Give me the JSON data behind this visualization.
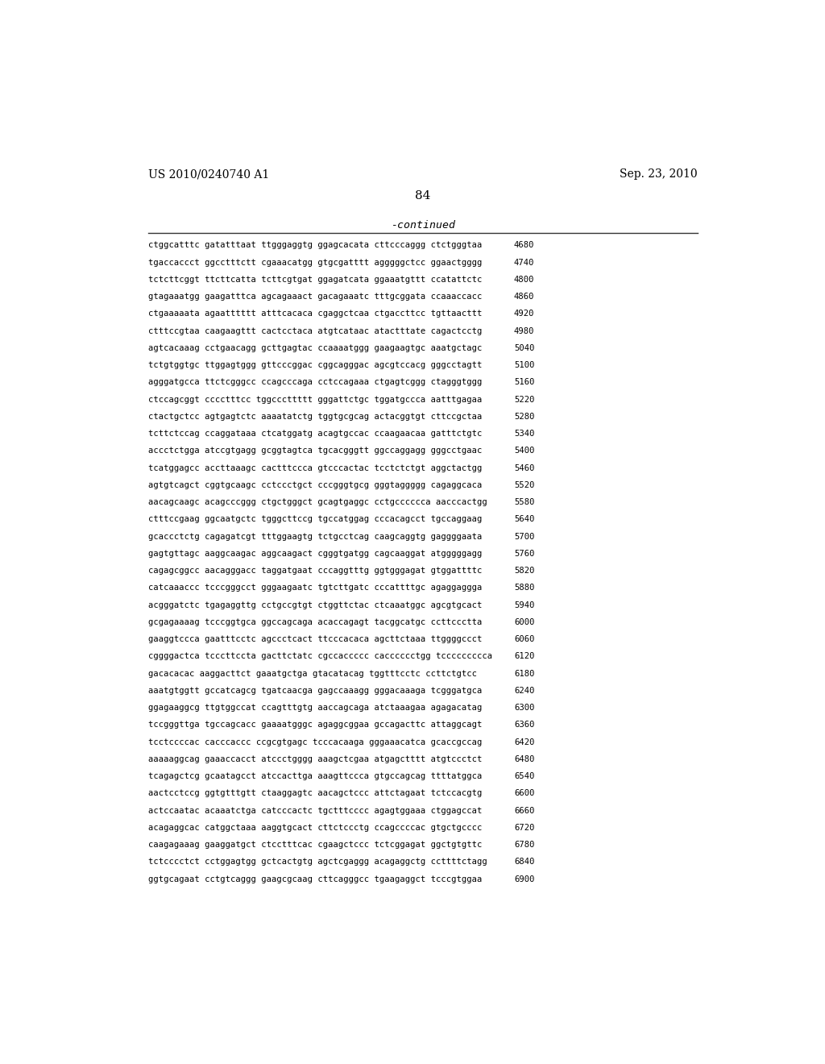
{
  "header_left": "US 2010/0240740 A1",
  "header_right": "Sep. 23, 2010",
  "page_number": "84",
  "continued_label": "-continued",
  "background_color": "#ffffff",
  "text_color": "#000000",
  "sequences": [
    [
      "ctggcatttc gatatttaat ttgggaggtg ggagcacata cttcccaggg ctctgggtaa",
      "4680"
    ],
    [
      "tgaccaccct ggcctttctt cgaaacatgg gtgcgatttt agggggctcc ggaactgggg",
      "4740"
    ],
    [
      "tctcttcggt ttcttcatta tcttcgtgat ggagatcata ggaaatgttt ccatattctc",
      "4800"
    ],
    [
      "gtagaaatgg gaagatttca agcagaaact gacagaaatc tttgcggata ccaaaccacc",
      "4860"
    ],
    [
      "ctgaaaaata agaatttttt atttcacaca cgaggctcaa ctgaccttcc tgttaacttt",
      "4920"
    ],
    [
      "ctttccgtaa caagaagttt cactcctaca atgtcataac atactttate cagactcctg",
      "4980"
    ],
    [
      "agtcacaaag cctgaacagg gcttgagtac ccaaaatggg gaagaagtgc aaatgctagc",
      "5040"
    ],
    [
      "tctgtggtgc ttggagtggg gttcccggac cggcagggac agcgtccacg gggcctagtt",
      "5100"
    ],
    [
      "agggatgcca ttctcgggcc ccagcccaga cctccagaaa ctgagtcggg ctagggtggg",
      "5160"
    ],
    [
      "ctccagcggt cccctttcc tggcccttttt gggattctgc tggatgccca aatttgagaa",
      "5220"
    ],
    [
      "ctactgctcc agtgagtctc aaaatatctg tggtgcgcag actacggtgt cttccgctaa",
      "5280"
    ],
    [
      "tcttctccag ccaggataaa ctcatggatg acagtgccac ccaagaacaa gatttctgtc",
      "5340"
    ],
    [
      "accctctgga atccgtgagg gcggtagtca tgcacgggtt ggccaggagg gggcctgaac",
      "5400"
    ],
    [
      "tcatggagcc accttaaagc cactttccca gtcccactac tcctctctgt aggctactgg",
      "5460"
    ],
    [
      "agtgtcagct cggtgcaagc cctccctgct cccgggtgcg gggtaggggg cagaggcaca",
      "5520"
    ],
    [
      "aacagcaagc acagcccggg ctgctgggct gcagtgaggc cctgcccccca aacccactgg",
      "5580"
    ],
    [
      "ctttccgaag ggcaatgctc tgggcttccg tgccatggag cccacagcct tgccaggaag",
      "5640"
    ],
    [
      "gcaccctctg cagagatcgt tttggaagtg tctgcctcag caagcaggtg gaggggaata",
      "5700"
    ],
    [
      "gagtgttagc aaggcaagac aggcaagact cgggtgatgg cagcaaggat atgggggagg",
      "5760"
    ],
    [
      "cagagcggcc aacagggacc taggatgaat cccaggtttg ggtgggagat gtggattttc",
      "5820"
    ],
    [
      "catcaaaccc tcccgggcct gggaagaatc tgtcttgatc cccattttgc agaggaggga",
      "5880"
    ],
    [
      "acgggatctc tgagaggttg cctgccgtgt ctggttctac ctcaaatggc agcgtgcact",
      "5940"
    ],
    [
      "gcgagaaaag tcccggtgca ggccagcaga acaccagagt tacggcatgc ccttccctta",
      "6000"
    ],
    [
      "gaaggtccca gaatttcctc agccctcact ttcccacaca agcttctaaa ttggggccct",
      "6060"
    ],
    [
      "cggggactca tcccttccta gacttctatc cgccaccccc cacccccctgg tccccccccca",
      "6120"
    ],
    [
      "gacacacac aaggacttct gaaatgctga gtacatacag tggtttcctc ccttctgtcc",
      "6180"
    ],
    [
      "aaatgtggtt gccatcagcg tgatcaacga gagccaaagg gggacaaaga tcgggatgca",
      "6240"
    ],
    [
      "ggagaaggcg ttgtggccat ccagtttgtg aaccagcaga atctaaagaa agagacatag",
      "6300"
    ],
    [
      "tccgggttga tgccagcacc gaaaatgggc agaggcggaa gccagacttc attaggcagt",
      "6360"
    ],
    [
      "tcctccccac cacccaccc ccgcgtgagc tcccacaaga gggaaacatca gcaccgccag",
      "6420"
    ],
    [
      "aaaaaggcag gaaaccacct atccctgggg aaagctcgaa atgagctttt atgtccctct",
      "6480"
    ],
    [
      "tcagagctcg gcaatagcct atccacttga aaagttccca gtgccagcag ttttatggca",
      "6540"
    ],
    [
      "aactcctccg ggtgtttgtt ctaaggagtc aacagctccc attctagaat tctccacgtg",
      "6600"
    ],
    [
      "actccaatac acaaatctga catcccactc tgctttcccc agagtggaaa ctggagccat",
      "6660"
    ],
    [
      "acagaggcac catggctaaa aaggtgcact cttctccctg ccagccccac gtgctgcccc",
      "6720"
    ],
    [
      "caagagaaag gaaggatgct ctcctttcac cgaagctccc tctcggagat ggctgtgttc",
      "6780"
    ],
    [
      "tctcccctct cctggagtgg gctcactgtg agctcgaggg acagaggctg ccttttctagg",
      "6840"
    ],
    [
      "ggtgcagaat cctgtcaggg gaagcgcaag cttcagggcc tgaagaggct tcccgtggaa",
      "6900"
    ]
  ]
}
